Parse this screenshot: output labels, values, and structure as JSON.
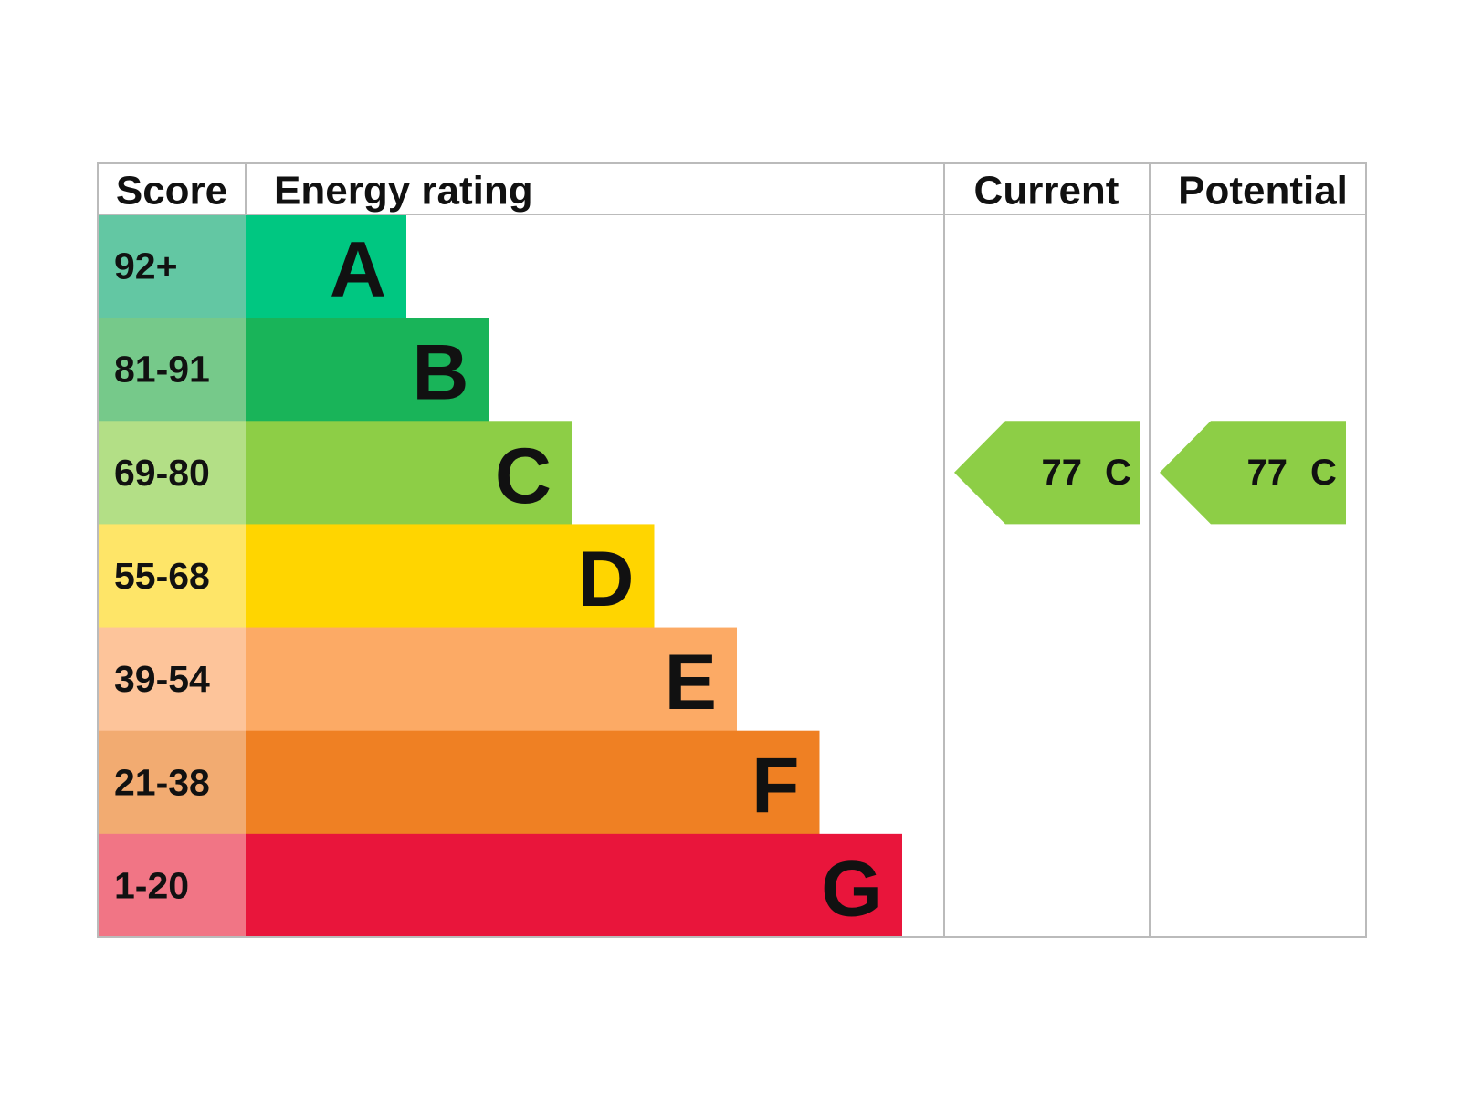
{
  "header": {
    "score": "Score",
    "energy_rating": "Energy rating",
    "current": "Current",
    "potential": "Potential"
  },
  "bands": [
    {
      "score": "92+",
      "rating": "A",
      "score_color": "#63c7a3",
      "color": "#00c781"
    },
    {
      "score": "81-91",
      "rating": "B",
      "score_color": "#76c98a",
      "color": "#19b459"
    },
    {
      "score": "69-80",
      "rating": "C",
      "score_color": "#b3df86",
      "color": "#8dce46"
    },
    {
      "score": "55-68",
      "rating": "D",
      "score_color": "#fee568",
      "color": "#ffd500"
    },
    {
      "score": "39-54",
      "rating": "E",
      "score_color": "#fdc49a",
      "color": "#fcaa65"
    },
    {
      "score": "21-38",
      "rating": "F",
      "score_color": "#f2ab71",
      "color": "#ef8023"
    },
    {
      "score": "1-20",
      "rating": "G",
      "score_color": "#f17585",
      "color": "#e9153b"
    }
  ],
  "current": {
    "score": 77,
    "rating": "C"
  },
  "potential": {
    "score": 77,
    "rating": "C"
  }
}
